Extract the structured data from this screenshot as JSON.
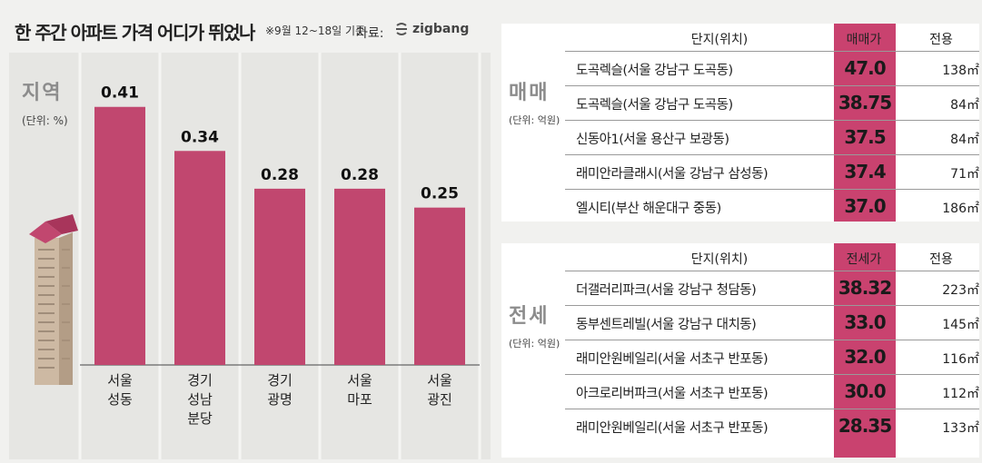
{
  "header": {
    "title": "한 주간 아파트 가격 어디가 뛰었나",
    "subtitle": "※9월 12~18일 기준",
    "source_label": "자료:",
    "source_name": "zigbang"
  },
  "colors": {
    "bar": "#c1476f",
    "price_band": "#c9426f",
    "panel": "#e6e6e3",
    "background": "#f1f1ef"
  },
  "chart_data": {
    "type": "bar",
    "title": "지역",
    "unit": "(단위: %)",
    "categories": [
      "서울 성동",
      "경기 성남 분당",
      "경기 광명",
      "서울 마포",
      "서울 광진"
    ],
    "category_lines": [
      [
        "서울",
        "성동"
      ],
      [
        "경기",
        "성남",
        "분당"
      ],
      [
        "경기",
        "광명"
      ],
      [
        "서울",
        "마포"
      ],
      [
        "서울",
        "광진"
      ]
    ],
    "values": [
      0.41,
      0.34,
      0.28,
      0.28,
      0.25
    ],
    "value_labels": [
      "0.41",
      "0.34",
      "0.28",
      "0.28",
      "0.25"
    ],
    "ylim": [
      0,
      0.45
    ],
    "grid": false,
    "legend": "none"
  },
  "sale": {
    "label": "매매",
    "unit": "(단위: 억원)",
    "columns": {
      "complex": "단지(위치)",
      "price": "매매가",
      "area": "전용"
    },
    "rows": [
      {
        "complex": "도곡렉슬(서울 강남구 도곡동)",
        "price": "47.0",
        "area": "138㎡"
      },
      {
        "complex": "도곡렉슬(서울 강남구 도곡동)",
        "price": "38.75",
        "area": "84㎡"
      },
      {
        "complex": "신동아1(서울 용산구 보광동)",
        "price": "37.5",
        "area": "84㎡"
      },
      {
        "complex": "래미안라클래시(서울 강남구 삼성동)",
        "price": "37.4",
        "area": "71㎡"
      },
      {
        "complex": "엘시티(부산 해운대구 중동)",
        "price": "37.0",
        "area": "186㎡"
      }
    ]
  },
  "jeonse": {
    "label": "전세",
    "unit": "(단위: 억원)",
    "columns": {
      "complex": "단지(위치)",
      "price": "전세가",
      "area": "전용"
    },
    "rows": [
      {
        "complex": "더갤러리파크(서울 강남구 청담동)",
        "price": "38.32",
        "area": "223㎡"
      },
      {
        "complex": "동부센트레빌(서울 강남구 대치동)",
        "price": "33.0",
        "area": "145㎡"
      },
      {
        "complex": "래미안원베일리(서울 서초구 반포동)",
        "price": "32.0",
        "area": "116㎡"
      },
      {
        "complex": "아크로리버파크(서울 서초구 반포동)",
        "price": "30.0",
        "area": "112㎡"
      },
      {
        "complex": "래미안원베일리(서울 서초구 반포동)",
        "price": "28.35",
        "area": "133㎡"
      }
    ]
  }
}
